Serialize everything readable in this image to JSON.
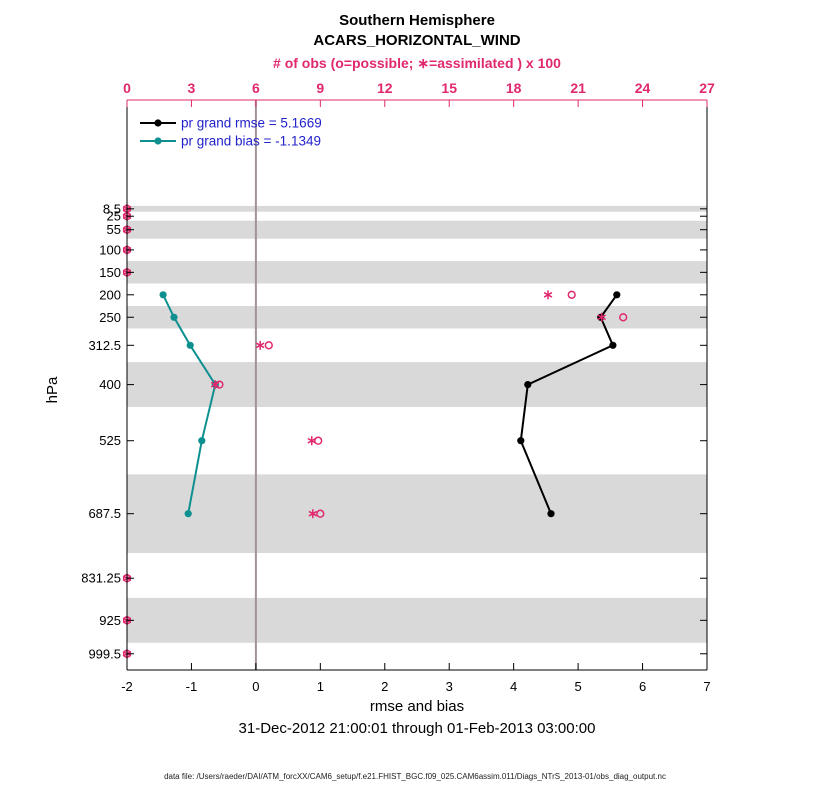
{
  "chart_data": {
    "type": "line",
    "title": "Southern Hemisphere",
    "subtitle": "ACARS_HORIZONTAL_WIND",
    "top_axis": {
      "label": "# of obs (o=possible; ∗=assimilated ) x 100",
      "ticks": [
        0,
        3,
        6,
        9,
        12,
        15,
        18,
        21,
        24,
        27
      ],
      "range": [
        0,
        27
      ],
      "color": "#e0286e"
    },
    "bottom_axis": {
      "label": "rmse and bias",
      "sublabel": "31-Dec-2012 21:00:01 through 01-Feb-2013 03:00:00",
      "ticks": [
        -2,
        -1,
        0,
        1,
        2,
        3,
        4,
        5,
        6,
        7
      ],
      "range": [
        -2,
        7
      ]
    },
    "left_axis": {
      "label": "hPa",
      "ticks": [
        8.5,
        25,
        55,
        100,
        150,
        200,
        250,
        312.5,
        400,
        525,
        687.5,
        831.25,
        925,
        999.5
      ]
    },
    "legend": [
      {
        "label": "pr grand rmse = 5.1669",
        "color": "#000000"
      },
      {
        "label": "pr grand bias = -1.1349",
        "color": "#0f9090"
      }
    ],
    "legend_text_color": "#2222cc",
    "band_color": "#d9d9d9",
    "zero_line_color": "#a09494",
    "shaded_bands_hpa": [
      [
        2,
        15
      ],
      [
        35,
        75
      ],
      [
        125,
        175
      ],
      [
        225,
        275
      ],
      [
        350,
        450
      ],
      [
        600,
        775
      ],
      [
        875,
        975
      ]
    ],
    "series": [
      {
        "name": "rmse",
        "color": "#000000",
        "marker": "dot",
        "axis": "bottom",
        "levels": [
          200,
          250,
          312.5,
          400,
          525,
          687.5
        ],
        "values": [
          5.6,
          5.35,
          5.54,
          4.22,
          4.11,
          4.58
        ]
      },
      {
        "name": "bias",
        "color": "#0f9090",
        "marker": "dot",
        "axis": "bottom",
        "levels": [
          200,
          250,
          312.5,
          400,
          525,
          687.5
        ],
        "values": [
          -1.44,
          -1.27,
          -1.02,
          -0.63,
          -0.84,
          -1.05
        ]
      },
      {
        "name": "obs_possible",
        "color": "#e0286e",
        "marker": "circle",
        "axis": "top",
        "levels": [
          200,
          250,
          312.5,
          400,
          525,
          687.5
        ],
        "values": [
          20.7,
          23.1,
          6.6,
          4.3,
          8.9,
          9.0
        ]
      },
      {
        "name": "obs_assimilated",
        "color": "#e0286e",
        "marker": "asterisk",
        "axis": "top",
        "levels": [
          200,
          250,
          312.5,
          400,
          525,
          687.5
        ],
        "values": [
          19.6,
          22.1,
          6.2,
          4.1,
          8.6,
          8.65
        ]
      }
    ],
    "no_data_levels": [
      8.5,
      25,
      55,
      100,
      150,
      831.25,
      925,
      999.5
    ],
    "footer": "data file: /Users/raeder/DAI/ATM_forcXX/CAM6_setup/f.e21.FHIST_BGC.f09_025.CAM6assim.011/Diags_NTrS_2013-01/obs_diag_output.nc"
  }
}
